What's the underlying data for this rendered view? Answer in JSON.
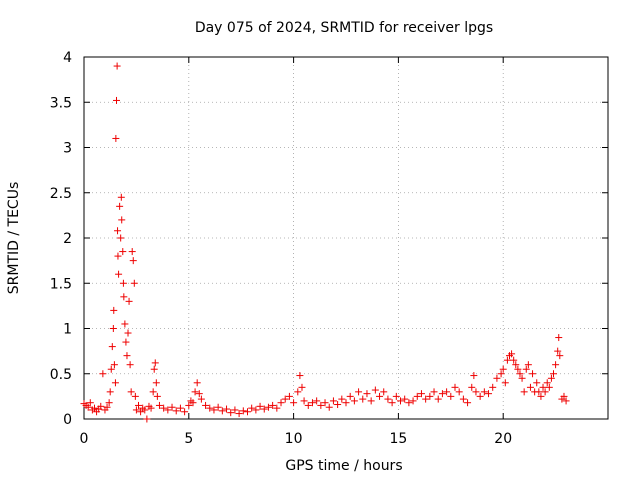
{
  "chart_data": {
    "type": "scatter",
    "title": "Day 075 of 2024, SRMTID for receiver lpgs",
    "xlabel": "GPS time / hours",
    "ylabel": "SRMTID / TECUs",
    "xlim": [
      0,
      25
    ],
    "ylim": [
      0,
      4
    ],
    "x_ticks": [
      0,
      5,
      10,
      15,
      20
    ],
    "y_ticks": [
      0,
      0.5,
      1,
      1.5,
      2,
      2.5,
      3,
      3.5,
      4
    ],
    "x_tick_labels": [
      "0",
      "5",
      "10",
      "15",
      "20"
    ],
    "y_tick_labels": [
      "0",
      "0.5",
      "1",
      "1.5",
      "2",
      "2.5",
      "3",
      "3.5",
      "4"
    ],
    "grid": true,
    "marker": "+",
    "color": "#ee0000",
    "series": [
      {
        "name": "SRMTID",
        "points": [
          [
            0.0,
            0.17
          ],
          [
            0.1,
            0.15
          ],
          [
            0.2,
            0.13
          ],
          [
            0.3,
            0.18
          ],
          [
            0.4,
            0.1
          ],
          [
            0.5,
            0.12
          ],
          [
            0.6,
            0.08
          ],
          [
            0.7,
            0.11
          ],
          [
            0.8,
            0.14
          ],
          [
            0.9,
            0.5
          ],
          [
            1.0,
            0.1
          ],
          [
            1.1,
            0.13
          ],
          [
            1.2,
            0.18
          ],
          [
            1.25,
            0.3
          ],
          [
            1.3,
            0.55
          ],
          [
            1.35,
            0.8
          ],
          [
            1.4,
            1.0
          ],
          [
            1.42,
            1.2
          ],
          [
            1.45,
            0.6
          ],
          [
            1.5,
            0.4
          ],
          [
            1.52,
            3.1
          ],
          [
            1.55,
            3.52
          ],
          [
            1.58,
            3.9
          ],
          [
            1.6,
            2.08
          ],
          [
            1.62,
            1.8
          ],
          [
            1.65,
            1.6
          ],
          [
            1.7,
            2.35
          ],
          [
            1.75,
            2.0
          ],
          [
            1.78,
            2.45
          ],
          [
            1.8,
            2.2
          ],
          [
            1.85,
            1.85
          ],
          [
            1.88,
            1.5
          ],
          [
            1.9,
            1.35
          ],
          [
            1.95,
            1.05
          ],
          [
            2.0,
            0.85
          ],
          [
            2.05,
            0.7
          ],
          [
            2.1,
            0.95
          ],
          [
            2.15,
            1.3
          ],
          [
            2.2,
            0.6
          ],
          [
            2.25,
            0.3
          ],
          [
            2.3,
            1.85
          ],
          [
            2.35,
            1.75
          ],
          [
            2.4,
            1.5
          ],
          [
            2.45,
            0.25
          ],
          [
            2.5,
            0.1
          ],
          [
            2.6,
            0.15
          ],
          [
            2.7,
            0.08
          ],
          [
            2.8,
            0.12
          ],
          [
            2.9,
            0.1
          ],
          [
            3.0,
            0.0
          ],
          [
            3.1,
            0.14
          ],
          [
            3.2,
            0.12
          ],
          [
            3.3,
            0.3
          ],
          [
            3.35,
            0.55
          ],
          [
            3.4,
            0.62
          ],
          [
            3.45,
            0.4
          ],
          [
            3.5,
            0.25
          ],
          [
            3.6,
            0.15
          ],
          [
            3.8,
            0.12
          ],
          [
            4.0,
            0.1
          ],
          [
            4.2,
            0.13
          ],
          [
            4.4,
            0.09
          ],
          [
            4.6,
            0.12
          ],
          [
            4.8,
            0.08
          ],
          [
            5.0,
            0.15
          ],
          [
            5.1,
            0.2
          ],
          [
            5.2,
            0.18
          ],
          [
            5.3,
            0.3
          ],
          [
            5.4,
            0.4
          ],
          [
            5.5,
            0.28
          ],
          [
            5.6,
            0.22
          ],
          [
            5.8,
            0.15
          ],
          [
            6.0,
            0.12
          ],
          [
            6.2,
            0.1
          ],
          [
            6.4,
            0.13
          ],
          [
            6.6,
            0.09
          ],
          [
            6.8,
            0.11
          ],
          [
            7.0,
            0.07
          ],
          [
            7.2,
            0.1
          ],
          [
            7.4,
            0.06
          ],
          [
            7.6,
            0.09
          ],
          [
            7.8,
            0.08
          ],
          [
            8.0,
            0.12
          ],
          [
            8.2,
            0.1
          ],
          [
            8.4,
            0.14
          ],
          [
            8.6,
            0.11
          ],
          [
            8.8,
            0.13
          ],
          [
            9.0,
            0.15
          ],
          [
            9.2,
            0.12
          ],
          [
            9.4,
            0.18
          ],
          [
            9.6,
            0.22
          ],
          [
            9.8,
            0.25
          ],
          [
            10.0,
            0.18
          ],
          [
            10.2,
            0.3
          ],
          [
            10.3,
            0.48
          ],
          [
            10.4,
            0.35
          ],
          [
            10.5,
            0.2
          ],
          [
            10.7,
            0.15
          ],
          [
            10.9,
            0.18
          ],
          [
            11.1,
            0.2
          ],
          [
            11.3,
            0.15
          ],
          [
            11.5,
            0.18
          ],
          [
            11.7,
            0.13
          ],
          [
            11.9,
            0.2
          ],
          [
            12.1,
            0.16
          ],
          [
            12.3,
            0.22
          ],
          [
            12.5,
            0.18
          ],
          [
            12.7,
            0.25
          ],
          [
            12.9,
            0.2
          ],
          [
            13.1,
            0.3
          ],
          [
            13.3,
            0.22
          ],
          [
            13.5,
            0.28
          ],
          [
            13.7,
            0.2
          ],
          [
            13.9,
            0.32
          ],
          [
            14.1,
            0.25
          ],
          [
            14.3,
            0.3
          ],
          [
            14.5,
            0.22
          ],
          [
            14.7,
            0.18
          ],
          [
            14.9,
            0.25
          ],
          [
            15.1,
            0.2
          ],
          [
            15.3,
            0.22
          ],
          [
            15.5,
            0.18
          ],
          [
            15.7,
            0.2
          ],
          [
            15.9,
            0.25
          ],
          [
            16.1,
            0.28
          ],
          [
            16.3,
            0.22
          ],
          [
            16.5,
            0.25
          ],
          [
            16.7,
            0.3
          ],
          [
            16.9,
            0.22
          ],
          [
            17.1,
            0.28
          ],
          [
            17.3,
            0.3
          ],
          [
            17.5,
            0.25
          ],
          [
            17.7,
            0.35
          ],
          [
            17.9,
            0.3
          ],
          [
            18.1,
            0.22
          ],
          [
            18.3,
            0.18
          ],
          [
            18.5,
            0.35
          ],
          [
            18.6,
            0.48
          ],
          [
            18.7,
            0.3
          ],
          [
            18.9,
            0.25
          ],
          [
            19.1,
            0.3
          ],
          [
            19.3,
            0.28
          ],
          [
            19.5,
            0.35
          ],
          [
            19.7,
            0.45
          ],
          [
            19.9,
            0.5
          ],
          [
            20.0,
            0.55
          ],
          [
            20.1,
            0.4
          ],
          [
            20.2,
            0.65
          ],
          [
            20.3,
            0.7
          ],
          [
            20.4,
            0.72
          ],
          [
            20.5,
            0.65
          ],
          [
            20.6,
            0.6
          ],
          [
            20.7,
            0.55
          ],
          [
            20.8,
            0.5
          ],
          [
            20.9,
            0.45
          ],
          [
            21.0,
            0.3
          ],
          [
            21.1,
            0.55
          ],
          [
            21.2,
            0.6
          ],
          [
            21.3,
            0.35
          ],
          [
            21.4,
            0.5
          ],
          [
            21.5,
            0.3
          ],
          [
            21.6,
            0.4
          ],
          [
            21.7,
            0.3
          ],
          [
            21.8,
            0.25
          ],
          [
            21.9,
            0.35
          ],
          [
            22.0,
            0.3
          ],
          [
            22.1,
            0.4
          ],
          [
            22.2,
            0.35
          ],
          [
            22.3,
            0.45
          ],
          [
            22.4,
            0.5
          ],
          [
            22.5,
            0.6
          ],
          [
            22.6,
            0.75
          ],
          [
            22.65,
            0.9
          ],
          [
            22.7,
            0.7
          ],
          [
            22.8,
            0.22
          ],
          [
            22.9,
            0.25
          ],
          [
            23.0,
            0.2
          ]
        ]
      }
    ]
  }
}
